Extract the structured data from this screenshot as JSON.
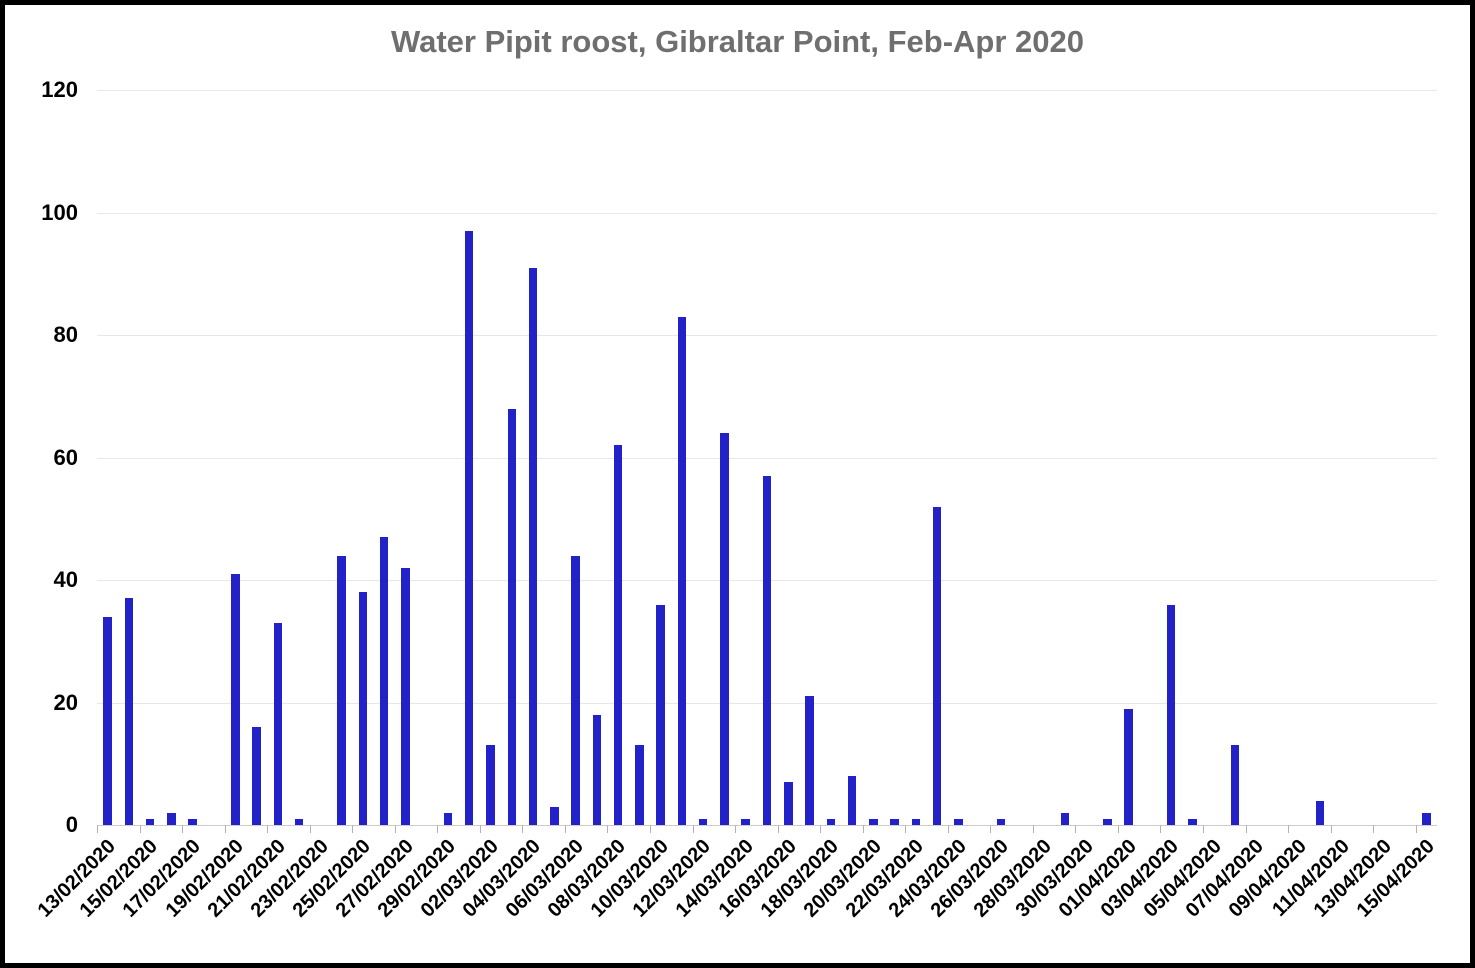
{
  "chart": {
    "title": "Water Pipit roost, Gibraltar Point, Feb-Apr 2020"
  },
  "chart_data": {
    "type": "bar",
    "title": "Water Pipit roost, Gibraltar Point, Feb-Apr 2020",
    "xlabel": "",
    "ylabel": "",
    "ylim": [
      0,
      120
    ],
    "y_ticks": [
      0,
      20,
      40,
      60,
      80,
      100,
      120
    ],
    "grid": true,
    "legend_position": "none",
    "categories": [
      "13/02/2020",
      "14/02/2020",
      "15/02/2020",
      "16/02/2020",
      "17/02/2020",
      "18/02/2020",
      "19/02/2020",
      "20/02/2020",
      "21/02/2020",
      "22/02/2020",
      "23/02/2020",
      "24/02/2020",
      "25/02/2020",
      "26/02/2020",
      "27/02/2020",
      "28/02/2020",
      "29/02/2020",
      "01/03/2020",
      "02/03/2020",
      "03/03/2020",
      "04/03/2020",
      "05/03/2020",
      "06/03/2020",
      "07/03/2020",
      "08/03/2020",
      "09/03/2020",
      "10/03/2020",
      "11/03/2020",
      "12/03/2020",
      "13/03/2020",
      "14/03/2020",
      "15/03/2020",
      "16/03/2020",
      "17/03/2020",
      "18/03/2020",
      "19/03/2020",
      "20/03/2020",
      "21/03/2020",
      "22/03/2020",
      "23/03/2020",
      "24/03/2020",
      "25/03/2020",
      "26/03/2020",
      "27/03/2020",
      "28/03/2020",
      "29/03/2020",
      "30/03/2020",
      "31/03/2020",
      "01/04/2020",
      "02/04/2020",
      "03/04/2020",
      "04/04/2020",
      "05/04/2020",
      "06/04/2020",
      "07/04/2020",
      "08/04/2020",
      "09/04/2020",
      "10/04/2020",
      "11/04/2020",
      "12/04/2020",
      "13/04/2020",
      "14/04/2020",
      "15/04/2020"
    ],
    "values": [
      34,
      37,
      1,
      2,
      1,
      0,
      41,
      16,
      33,
      1,
      0,
      44,
      38,
      47,
      42,
      0,
      2,
      97,
      13,
      68,
      91,
      3,
      44,
      18,
      62,
      13,
      36,
      83,
      1,
      64,
      1,
      57,
      7,
      21,
      1,
      8,
      1,
      1,
      1,
      52,
      1,
      0,
      1,
      0,
      0,
      2,
      0,
      1,
      19,
      0,
      36,
      1,
      0,
      13,
      0,
      0,
      0,
      4,
      0,
      0,
      0,
      0,
      2
    ],
    "x_tick_labels": [
      "13/02/2020",
      "15/02/2020",
      "17/02/2020",
      "19/02/2020",
      "21/02/2020",
      "23/02/2020",
      "25/02/2020",
      "27/02/2020",
      "29/02/2020",
      "02/03/2020",
      "04/03/2020",
      "06/03/2020",
      "08/03/2020",
      "10/03/2020",
      "12/03/2020",
      "14/03/2020",
      "16/03/2020",
      "18/03/2020",
      "20/03/2020",
      "22/03/2020",
      "24/03/2020",
      "26/03/2020",
      "28/03/2020",
      "30/03/2020",
      "01/04/2020",
      "03/04/2020",
      "05/04/2020",
      "07/04/2020",
      "09/04/2020",
      "11/04/2020",
      "13/04/2020",
      "15/04/2020"
    ],
    "x_label_every_n_days": 2
  },
  "colors": {
    "bar": "#2322c9",
    "title_text": "#6f6f6f",
    "axis_text": "#000000",
    "gridline": "#e7e7e7",
    "axis_line": "#cccccc",
    "tick": "#b3b3b3",
    "frame_border": "#000000",
    "background": "#ffffff"
  }
}
